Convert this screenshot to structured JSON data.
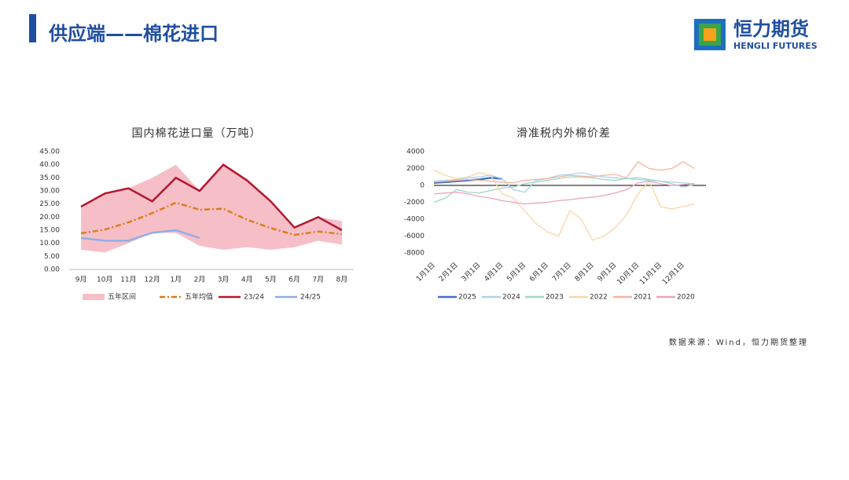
{
  "header": {
    "title": "供应端——棉花进口",
    "logo_cn": "恒力期货",
    "logo_en": "HENGLI FUTURES"
  },
  "source": "数据来源：Wind，恒力期货整理",
  "chart_data": [
    {
      "type": "line",
      "title": "国内棉花进口量（万吨）",
      "categories": [
        "9月",
        "10月",
        "11月",
        "12月",
        "1月",
        "2月",
        "3月",
        "4月",
        "5月",
        "6月",
        "7月",
        "8月"
      ],
      "ylim": [
        0,
        45
      ],
      "yticks": [
        {
          "value": 0,
          "label": "0.00"
        },
        {
          "value": 5,
          "label": "5.00"
        },
        {
          "value": 10,
          "label": "10.00"
        },
        {
          "value": 15,
          "label": "15.00"
        },
        {
          "value": 20,
          "label": "20.00"
        },
        {
          "value": 25,
          "label": "25.00"
        },
        {
          "value": 30,
          "label": "30.00"
        },
        {
          "value": 35,
          "label": "35.00"
        },
        {
          "value": 40,
          "label": "40.00"
        },
        {
          "value": 45,
          "label": "45.00"
        }
      ],
      "series": [
        {
          "name": "五年区间",
          "color": "#f6bfc8",
          "style": "area",
          "values": [
            24,
            29,
            31,
            35,
            40,
            30,
            40,
            34,
            26,
            16,
            20,
            18.5
          ],
          "lower": [
            7.5,
            6.5,
            10,
            14,
            14,
            9,
            7.5,
            8.5,
            7.5,
            8.5,
            11,
            9.5
          ]
        },
        {
          "name": "五年均值",
          "color": "#e07b1a",
          "style": "dashdot",
          "values": [
            13.8,
            15.2,
            18,
            21.5,
            25.5,
            22.8,
            23.2,
            19,
            15.8,
            13.2,
            14.5,
            13.5
          ]
        },
        {
          "name": "23/24",
          "color": "#b5172f",
          "style": "solid",
          "values": [
            24,
            29,
            31,
            26,
            35,
            30,
            40,
            34,
            26,
            16,
            20,
            15
          ]
        },
        {
          "name": "24/25",
          "color": "#8faee6",
          "style": "solid",
          "values": [
            12,
            11,
            11,
            14,
            15,
            12,
            null,
            null,
            null,
            null,
            null,
            null
          ]
        }
      ]
    },
    {
      "type": "line",
      "title": "滑准税内外棉价差",
      "categories": [
        "1月1日",
        null,
        "2月1日",
        null,
        "3月1日",
        null,
        "4月1日",
        null,
        "5月1日",
        null,
        "6月1日",
        null,
        "7月1日",
        null,
        "8月1日",
        null,
        "9月1日",
        null,
        "10月1日",
        null,
        "11月1日",
        null,
        "12月1日",
        null
      ],
      "ylim": [
        -8000,
        4000
      ],
      "yticks": [
        -8000,
        -6000,
        -4000,
        -2000,
        0,
        2000,
        4000
      ],
      "series": [
        {
          "name": "2025",
          "color": "#4472c4",
          "style": "solid",
          "width": 2.5,
          "values": [
            300,
            400,
            500,
            600,
            700,
            900,
            800,
            null,
            null,
            null,
            null,
            null,
            null,
            null,
            null,
            null,
            null,
            null,
            null,
            null,
            null,
            null,
            null,
            null
          ]
        },
        {
          "name": "2024",
          "color": "#a9d3ee",
          "style": "solid",
          "values": [
            500,
            600,
            700,
            900,
            1000,
            1200,
            800,
            -500,
            -800,
            600,
            800,
            1200,
            1300,
            1500,
            1200,
            1000,
            900,
            800,
            700,
            600,
            500,
            400,
            300,
            200
          ]
        },
        {
          "name": "2023",
          "color": "#9fd8c8",
          "style": "solid",
          "values": [
            -2000,
            -1500,
            -500,
            -800,
            -900,
            -600,
            -300,
            -200,
            200,
            400,
            600,
            800,
            1000,
            1000,
            900,
            700,
            600,
            800,
            900,
            700,
            500,
            200,
            -200,
            100
          ]
        },
        {
          "name": "2022",
          "color": "#f9d6a3",
          "style": "solid",
          "values": [
            1800,
            1200,
            800,
            1000,
            1500,
            1200,
            -1000,
            -1500,
            -3000,
            -4500,
            -5500,
            -6000,
            -3000,
            -4000,
            -6500,
            -6000,
            -5000,
            -3500,
            -1000,
            500,
            -2500,
            -2800,
            -2500,
            -2200
          ]
        },
        {
          "name": "2021",
          "color": "#f4b39c",
          "style": "solid",
          "values": [
            400,
            500,
            600,
            700,
            600,
            500,
            400,
            300,
            600,
            700,
            800,
            1000,
            1200,
            1100,
            1000,
            1200,
            1300,
            900,
            2800,
            2000,
            1800,
            2000,
            2800,
            2000
          ]
        },
        {
          "name": "2020",
          "color": "#eea3bd",
          "style": "solid",
          "values": [
            -1000,
            -900,
            -800,
            -1000,
            -1300,
            -1500,
            -1800,
            -2000,
            -2200,
            -2100,
            -2000,
            -1800,
            -1700,
            -1500,
            -1400,
            -1200,
            -900,
            -500,
            300,
            500,
            200,
            0,
            100,
            200
          ]
        }
      ]
    }
  ]
}
